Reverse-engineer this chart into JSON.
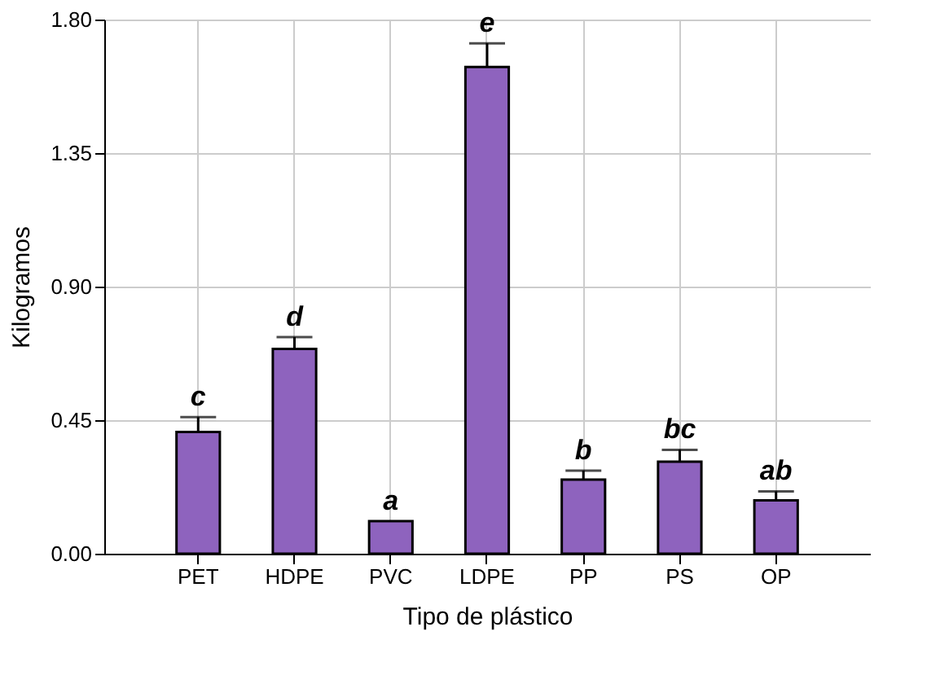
{
  "chart_data": {
    "type": "bar",
    "xlabel": "Tipo de plástico",
    "ylabel": "Kilogramos",
    "categories": [
      "PET",
      "HDPE",
      "PVC",
      "LDPE",
      "PP",
      "PS",
      "OP"
    ],
    "values": [
      0.41,
      0.69,
      0.11,
      1.64,
      0.25,
      0.31,
      0.18
    ],
    "errors": [
      0.05,
      0.04,
      null,
      0.08,
      0.03,
      0.04,
      0.03
    ],
    "color": "#8e63be",
    "ylim": [
      0,
      1.8
    ],
    "yticks": [
      {
        "value": 0,
        "label": "0.00"
      },
      {
        "value": 0.45,
        "label": "0.45"
      },
      {
        "value": 0.9,
        "label": "0.90"
      },
      {
        "value": 1.35,
        "label": "1.35"
      },
      {
        "value": 1.8,
        "label": "1.80"
      }
    ],
    "grid": true,
    "annotations": [
      {
        "text": "c",
        "x": "PET",
        "y": 0.46
      },
      {
        "text": "d",
        "x": "HDPE",
        "y": 0.73
      },
      {
        "text": "a",
        "x": "PVC",
        "y": 0.11
      },
      {
        "text": "e",
        "x": "LDPE",
        "y": 1.72
      },
      {
        "text": "b",
        "x": "PP",
        "y": 0.28
      },
      {
        "text": "bc",
        "x": "PS",
        "y": 0.35
      },
      {
        "text": "ab",
        "x": "OP",
        "y": 0.21
      }
    ]
  }
}
